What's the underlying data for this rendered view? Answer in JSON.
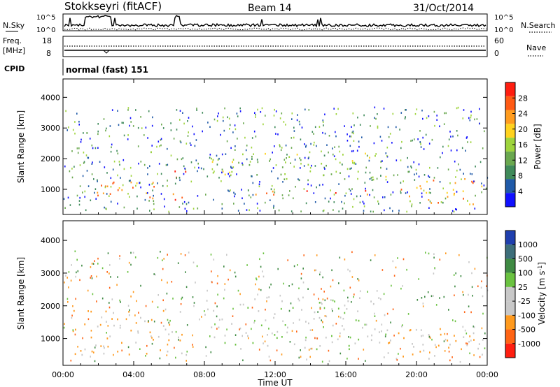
{
  "header": {
    "station": "Stokkseyri (fitACF)",
    "beam": "Beam 14",
    "date": "31/Oct/2014"
  },
  "summary_panels": {
    "nsky_label": "N.Sky",
    "nsky_tick_top": "10^5",
    "nsky_tick_bottom": "10^0",
    "nsearch_label": "N.Search",
    "nsearch_tick_top": "10^5",
    "nsearch_tick_bottom": "10^0",
    "freq_label_line1": "Freq.",
    "freq_label_line2": "[MHz]",
    "freq_tick_top": "18",
    "freq_tick_bottom": "8",
    "nave_label": "Nave",
    "nave_tick_top": "60",
    "nave_tick_bottom": "0",
    "cpid_label": "CPID",
    "cpid_value": "normal (fast) 151"
  },
  "colors": {
    "power_scale": [
      "#1010ff",
      "#205aa8",
      "#3f8a5a",
      "#6aa84f",
      "#9ed43c",
      "#ffd21e",
      "#ff9c1e",
      "#ff5a14",
      "#ff1e10"
    ],
    "velocity_scale": [
      "#1f3fae",
      "#3d6e7a",
      "#3f8a43",
      "#6ac240",
      "#c8c8c8",
      "#c8c8c8",
      "#ff9a1e",
      "#ff6414",
      "#ff1e10"
    ]
  },
  "chart_data": [
    {
      "type": "heatmap",
      "name": "power",
      "ylabel": "Slant Range [km]",
      "ylim": [
        180,
        4600
      ],
      "yticks": [
        "1000",
        "2000",
        "3000",
        "4000"
      ],
      "xlim": [
        0,
        24
      ],
      "colorbar": {
        "label": "Power [dB]",
        "ticks": [
          "4",
          "8",
          "12",
          "16",
          "20",
          "24",
          "28"
        ],
        "range": [
          0,
          32
        ]
      },
      "features": [
        {
          "t0": 0.5,
          "t1": 5.5,
          "r0": 700,
          "r1": 1300,
          "value": 24
        },
        {
          "t0": 6.2,
          "t1": 7.0,
          "r0": 600,
          "r1": 1700,
          "value": 28
        },
        {
          "t0": 8.2,
          "t1": 18.5,
          "r0": 1300,
          "r1": 2200,
          "value": 14
        },
        {
          "t0": 10.5,
          "t1": 17.5,
          "r0": 850,
          "r1": 1000,
          "value": 28
        },
        {
          "t0": 19.0,
          "t1": 23.8,
          "r0": 500,
          "r1": 1400,
          "value": 22
        }
      ]
    },
    {
      "type": "heatmap",
      "name": "velocity",
      "ylabel": "Slant Range [km]",
      "ylim": [
        180,
        4600
      ],
      "yticks": [
        "1000",
        "2000",
        "3000",
        "4000"
      ],
      "xlim": [
        0,
        24
      ],
      "xticks": [
        "00:00",
        "04:00",
        "08:00",
        "12:00",
        "16:00",
        "20:00",
        "00:00"
      ],
      "xlabel": "Time UT",
      "colorbar": {
        "label": "Velocity [m s-1]",
        "ticks": [
          "1000",
          "500",
          "100",
          "25",
          "-25",
          "-100",
          "-500",
          "-1000"
        ]
      },
      "features": [
        {
          "t0": 0.5,
          "t1": 7.0,
          "r0": 500,
          "r1": 1900,
          "value": -100
        },
        {
          "t0": 8.0,
          "t1": 18.5,
          "r0": 700,
          "r1": 2300,
          "value": 0
        },
        {
          "t0": 18.0,
          "t1": 23.8,
          "r0": 400,
          "r1": 1400,
          "value": -100
        }
      ]
    }
  ]
}
